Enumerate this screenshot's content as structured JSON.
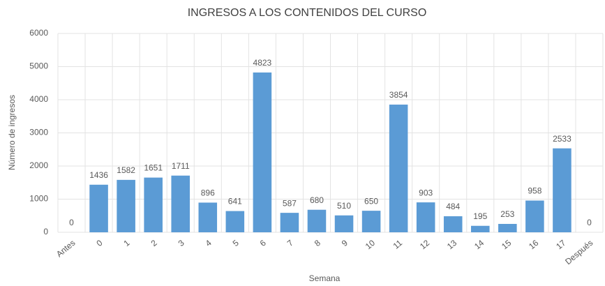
{
  "chart_data": {
    "type": "bar",
    "title": "INGRESOS A LOS CONTENIDOS DEL CURSO",
    "x_label": "Semana",
    "y_label": "Número de ingresos",
    "categories": [
      "Antes",
      "0",
      "1",
      "2",
      "3",
      "4",
      "5",
      "6",
      "7",
      "8",
      "9",
      "10",
      "11",
      "12",
      "13",
      "14",
      "15",
      "16",
      "17",
      "Después"
    ],
    "values": [
      0,
      1436,
      1582,
      1651,
      1711,
      896,
      641,
      4823,
      587,
      680,
      510,
      650,
      3854,
      903,
      484,
      195,
      253,
      958,
      2533,
      0
    ],
    "color": "#5b9bd5",
    "ylim": [
      0,
      6000
    ],
    "yticks": [
      0,
      1000,
      2000,
      3000,
      4000,
      5000,
      6000
    ],
    "grid": true
  }
}
